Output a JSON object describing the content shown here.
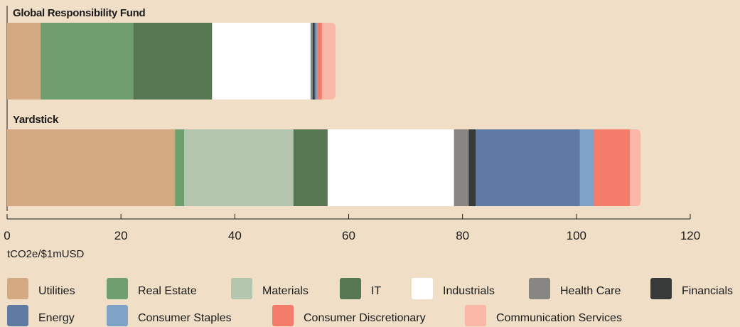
{
  "chart_data": {
    "type": "bar",
    "orientation": "horizontal",
    "stacked": true,
    "categories": [
      "Global Responsibility Fund",
      "Yardstick"
    ],
    "series": [
      {
        "name": "Utilities",
        "color": "#d2a981",
        "values": [
          5.9,
          29.5
        ]
      },
      {
        "name": "Real Estate",
        "color": "#6f9f6f",
        "values": [
          16.3,
          1.6
        ]
      },
      {
        "name": "Materials",
        "color": "#b3c6ad",
        "values": [
          0,
          19.2
        ]
      },
      {
        "name": "IT",
        "color": "#577752",
        "values": [
          13.8,
          6.0
        ]
      },
      {
        "name": "Industrials",
        "color": "#ffffff",
        "values": [
          17.3,
          22.2
        ]
      },
      {
        "name": "Health Care",
        "color": "#888682",
        "values": [
          0.4,
          2.6
        ]
      },
      {
        "name": "Financials",
        "color": "#373a39",
        "values": [
          0.3,
          1.2
        ]
      },
      {
        "name": "Energy",
        "color": "#5f7ba3",
        "values": [
          0.2,
          18.3
        ]
      },
      {
        "name": "Consumer Staples",
        "color": "#7ea3c6",
        "values": [
          0.3,
          2.4
        ]
      },
      {
        "name": "Consumer Discretionary",
        "color": "#f47c6b",
        "values": [
          0.8,
          6.4
        ]
      },
      {
        "name": "Communication Services",
        "color": "#f9b7a7",
        "values": [
          2.4,
          1.9
        ]
      }
    ],
    "xlim": [
      0,
      120
    ],
    "xticks": [
      0,
      20,
      40,
      60,
      80,
      100,
      120
    ],
    "xlabel": "tCO2e/$1mUSD",
    "legend_position": "bottom"
  }
}
